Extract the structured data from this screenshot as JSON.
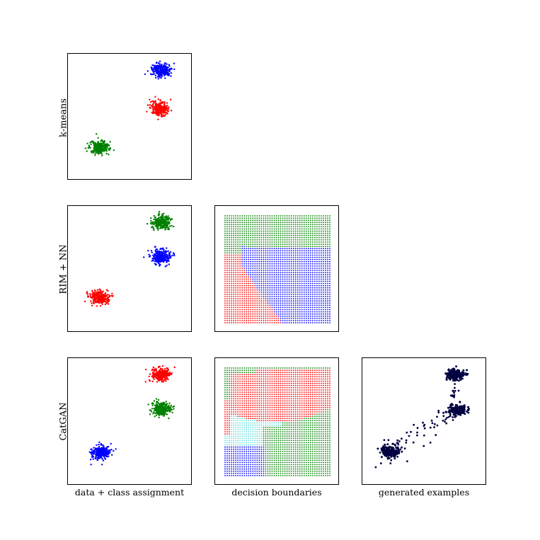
{
  "chart_data": [
    {
      "type": "scatter",
      "row": "k-means",
      "panel": "data",
      "clusters": [
        {
          "label": "blue",
          "color": "#0000ff",
          "cx": 0.75,
          "cy": 0.87,
          "n": 260
        },
        {
          "label": "red",
          "color": "#ff0000",
          "cx": 0.74,
          "cy": 0.57,
          "n": 260
        },
        {
          "label": "green",
          "color": "#008000",
          "cx": 0.25,
          "cy": 0.26,
          "n": 260
        }
      ]
    },
    {
      "type": "scatter",
      "row": "RIM + NN",
      "panel": "data",
      "clusters": [
        {
          "label": "green",
          "color": "#008000",
          "cx": 0.75,
          "cy": 0.87,
          "n": 260
        },
        {
          "label": "blue",
          "color": "#0000ff",
          "cx": 0.75,
          "cy": 0.6,
          "n": 260
        },
        {
          "label": "red",
          "color": "#ff0000",
          "cx": 0.25,
          "cy": 0.28,
          "n": 260
        }
      ]
    },
    {
      "type": "scatter",
      "row": "RIM + NN",
      "panel": "decision boundaries",
      "region_colors": {
        "green": "#008000",
        "blue": "#0000ff",
        "red": "#ff0000"
      }
    },
    {
      "type": "scatter",
      "row": "CatGAN",
      "panel": "data",
      "clusters": [
        {
          "label": "red",
          "color": "#ff0000",
          "cx": 0.75,
          "cy": 0.87,
          "n": 260
        },
        {
          "label": "green",
          "color": "#008000",
          "cx": 0.75,
          "cy": 0.6,
          "n": 260
        },
        {
          "label": "blue",
          "color": "#0000ff",
          "cx": 0.26,
          "cy": 0.26,
          "n": 260
        }
      ]
    },
    {
      "type": "scatter",
      "row": "CatGAN",
      "panel": "decision boundaries",
      "region_colors": {
        "green": "#008000",
        "red": "#ff0000",
        "cyan": "#66dddd",
        "blue": "#0000ff"
      }
    },
    {
      "type": "scatter",
      "row": "CatGAN",
      "panel": "generated examples",
      "color": "#000040",
      "clusters": [
        {
          "cx": 0.75,
          "cy": 0.87,
          "n": 200
        },
        {
          "cx": 0.76,
          "cy": 0.59,
          "n": 160
        },
        {
          "cx": 0.23,
          "cy": 0.27,
          "n": 160
        }
      ],
      "bridge_points": 55
    }
  ],
  "labels": {
    "row_kmeans": "k-means",
    "row_rim": "RIM + NN",
    "row_catgan": "CatGAN",
    "col_data": "data + class assignment",
    "col_boundaries": "decision boundaries",
    "col_generated": "generated examples"
  }
}
